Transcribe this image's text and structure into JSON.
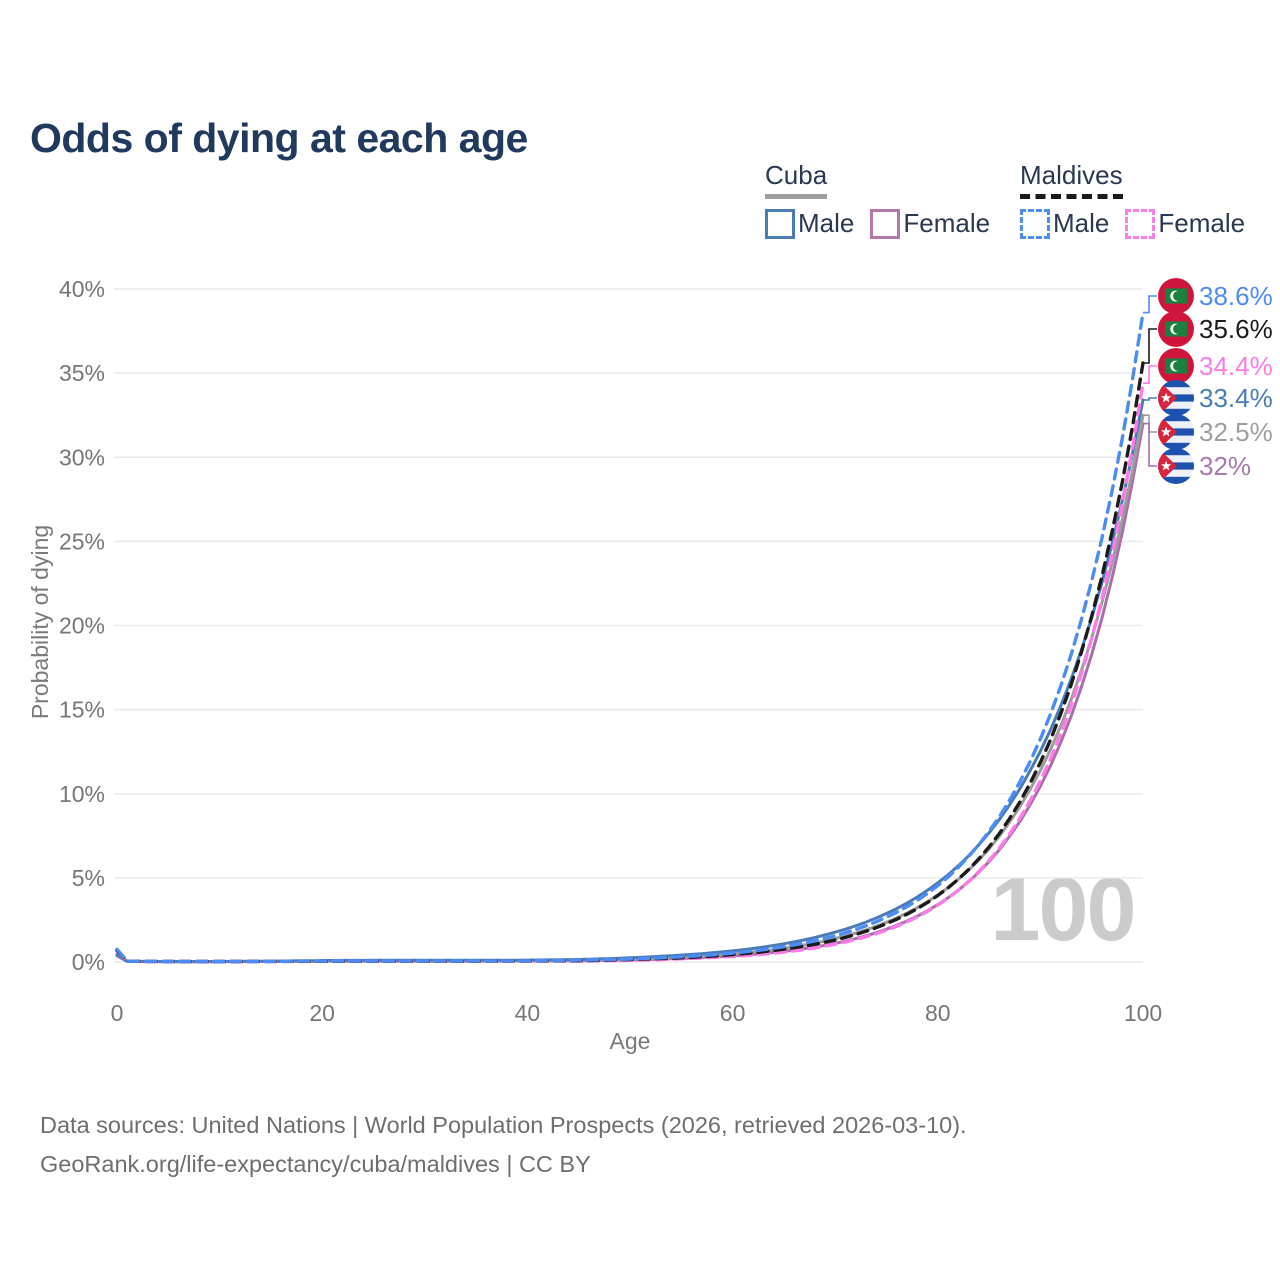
{
  "title": "Odds of dying at each age",
  "watermark": "100",
  "legend": {
    "groups": [
      {
        "name": "Cuba",
        "line_style": "solid",
        "underline_color": "#9e9e9e",
        "items": [
          {
            "label": "Male",
            "color": "#4a7bb7",
            "dashed": false
          },
          {
            "label": "Female",
            "color": "#b279ae",
            "dashed": false
          }
        ]
      },
      {
        "name": "Maldives",
        "line_style": "dashed",
        "underline_color": "#1a1a1a",
        "items": [
          {
            "label": "Male",
            "color": "#4d8cf5",
            "dashed": true
          },
          {
            "label": "Female",
            "color": "#fb7ce8",
            "dashed": true
          }
        ]
      }
    ]
  },
  "footer": {
    "line1": "Data sources: United Nations | World Population Prospects (2026, retrieved 2026-03-10).",
    "line2": "GeoRank.org/life-expectancy/cuba/maldives | CC BY"
  },
  "chart_data": {
    "type": "line",
    "title": "Odds of dying at each age",
    "xlabel": "Age",
    "ylabel": "Probability of dying",
    "xlim": [
      0,
      100
    ],
    "ylim": [
      0,
      40
    ],
    "x_ticks": [
      0,
      20,
      40,
      60,
      80,
      100
    ],
    "y_ticks_percent": [
      0,
      5,
      10,
      15,
      20,
      25,
      30,
      35,
      40
    ],
    "grid": "horizontal",
    "legend_position": "top-right",
    "highlighted_age": 100,
    "ages": [
      0,
      1,
      5,
      10,
      15,
      20,
      25,
      30,
      35,
      40,
      45,
      50,
      55,
      60,
      65,
      70,
      75,
      80,
      85,
      90,
      95,
      100
    ],
    "series": [
      {
        "name": "Maldives Male",
        "country": "Maldives",
        "sex": "Male",
        "flag": "maldives",
        "color": "#4d8cf5",
        "dashed": true,
        "end_value": 38.6,
        "end_label": "38.6%",
        "label_color": "#4d8cf5",
        "values": [
          0.75,
          0.05,
          0.03,
          0.03,
          0.04,
          0.06,
          0.06,
          0.06,
          0.06,
          0.07,
          0.11,
          0.18,
          0.31,
          0.53,
          0.91,
          1.56,
          2.66,
          4.54,
          7.76,
          13.26,
          22.65,
          38.6
        ]
      },
      {
        "name": "Maldives Both sexes",
        "country": "Maldives",
        "sex": "Both",
        "flag": "maldives",
        "color": "#1b1b1b",
        "dashed": true,
        "end_value": 35.6,
        "end_label": "35.6%",
        "label_color": "#1b1b1b",
        "values": [
          0.7,
          0.045,
          0.03,
          0.03,
          0.035,
          0.05,
          0.05,
          0.05,
          0.05,
          0.06,
          0.08,
          0.15,
          0.25,
          0.44,
          0.76,
          1.31,
          2.28,
          3.95,
          6.84,
          11.86,
          20.55,
          35.6
        ]
      },
      {
        "name": "Maldives Female",
        "country": "Maldives",
        "sex": "Female",
        "flag": "maldives",
        "color": "#fb7ce8",
        "dashed": true,
        "end_value": 34.4,
        "end_label": "34.4%",
        "label_color": "#fb7ce8",
        "values": [
          0.65,
          0.04,
          0.025,
          0.025,
          0.03,
          0.04,
          0.04,
          0.04,
          0.04,
          0.05,
          0.06,
          0.1,
          0.19,
          0.33,
          0.59,
          1.06,
          1.89,
          3.38,
          6.03,
          10.77,
          19.24,
          34.4
        ]
      },
      {
        "name": "Cuba Male",
        "country": "Cuba",
        "sex": "Male",
        "flag": "cuba",
        "color": "#4a7bb7",
        "dashed": false,
        "end_value": 33.4,
        "end_label": "33.4%",
        "label_color": "#4a7bb7",
        "values": [
          0.45,
          0.04,
          0.03,
          0.03,
          0.05,
          0.09,
          0.1,
          0.1,
          0.1,
          0.11,
          0.15,
          0.25,
          0.41,
          0.66,
          1.08,
          1.77,
          2.88,
          4.7,
          7.68,
          12.53,
          20.46,
          33.4
        ]
      },
      {
        "name": "Cuba Both sexes",
        "country": "Cuba",
        "sex": "Both",
        "flag": "cuba",
        "color": "#9c9c9c",
        "dashed": false,
        "end_value": 32.5,
        "end_label": "32.5%",
        "label_color": "#9e9e9e",
        "values": [
          0.4,
          0.035,
          0.025,
          0.025,
          0.04,
          0.06,
          0.07,
          0.07,
          0.07,
          0.08,
          0.1,
          0.17,
          0.29,
          0.49,
          0.82,
          1.39,
          2.36,
          3.98,
          6.73,
          11.39,
          19.25,
          32.5
        ]
      },
      {
        "name": "Cuba Female",
        "country": "Cuba",
        "sex": "Female",
        "flag": "cuba",
        "color": "#a96fa9",
        "dashed": false,
        "end_value": 32.0,
        "end_label": "32%",
        "label_color": "#a878ae",
        "values": [
          0.36,
          0.03,
          0.02,
          0.02,
          0.03,
          0.04,
          0.04,
          0.05,
          0.05,
          0.06,
          0.07,
          0.12,
          0.21,
          0.36,
          0.64,
          1.11,
          1.95,
          3.41,
          5.97,
          10.45,
          18.28,
          32.0
        ]
      }
    ]
  }
}
